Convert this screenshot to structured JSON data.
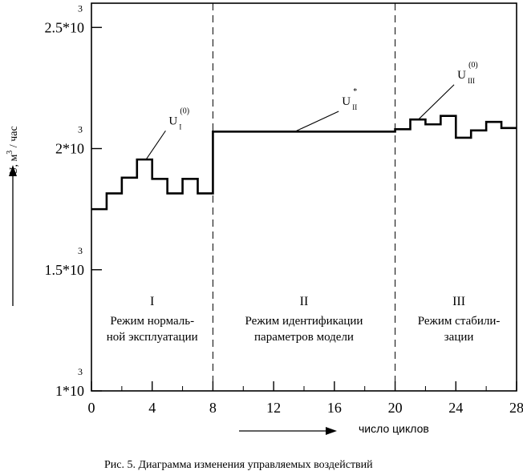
{
  "caption": "Рис. 5. Диаграмма изменения управляемых воздействий",
  "colors": {
    "ink": "#000000",
    "background": "#ffffff"
  },
  "chart_data": {
    "type": "line",
    "step": true,
    "xlabel": "число циклов",
    "xlim": [
      0,
      28
    ],
    "x_ticks": [
      0,
      4,
      8,
      12,
      16,
      20,
      24,
      28
    ],
    "ylim": [
      1000,
      2600
    ],
    "y_ticks": [
      {
        "value": 2500,
        "label": "2.5*10",
        "exp": "3"
      },
      {
        "value": 2000,
        "label": "2*10",
        "exp": "3"
      },
      {
        "value": 1500,
        "label": "1.5*10",
        "exp": "3"
      },
      {
        "value": 1000,
        "label": "1*10",
        "exp": "3"
      }
    ],
    "ylabel": {
      "text": "U, м",
      "exp": "3",
      "tail": " / час"
    },
    "grid": false,
    "dividers_x": [
      8,
      20
    ],
    "regions": [
      {
        "numeral": "I",
        "lines": [
          "Режим нормаль-",
          "ной эксплуатации"
        ],
        "x_center": 4
      },
      {
        "numeral": "II",
        "lines": [
          "Режим идентификации",
          "параметров модели"
        ],
        "x_center": 14
      },
      {
        "numeral": "III",
        "lines": [
          "Режим стабили-",
          "зации"
        ],
        "x_center": 24.2
      }
    ],
    "series": [
      {
        "x": [
          0,
          1,
          2,
          3,
          4,
          5,
          6,
          7,
          8,
          20,
          21,
          22,
          23,
          24,
          25,
          26,
          27,
          28
        ],
        "y": [
          1750,
          1815,
          1880,
          1955,
          1875,
          1815,
          1875,
          1815,
          2070,
          2080,
          2120,
          2100,
          2135,
          2045,
          2075,
          2110,
          2085,
          2085
        ]
      }
    ],
    "annotations": [
      {
        "label": "U",
        "sub": "I",
        "sup": "(0)",
        "x": 3.6,
        "y": 1955,
        "text_x": 5.2,
        "text_y": 2100
      },
      {
        "label": "U",
        "sub": "II",
        "sup": "*",
        "x": 13.5,
        "y": 2073,
        "text_x": 16.6,
        "text_y": 2180
      },
      {
        "label": "U",
        "sub": "III",
        "sup": "(0)",
        "x": 21.5,
        "y": 2118,
        "text_x": 24.2,
        "text_y": 2290
      }
    ]
  }
}
